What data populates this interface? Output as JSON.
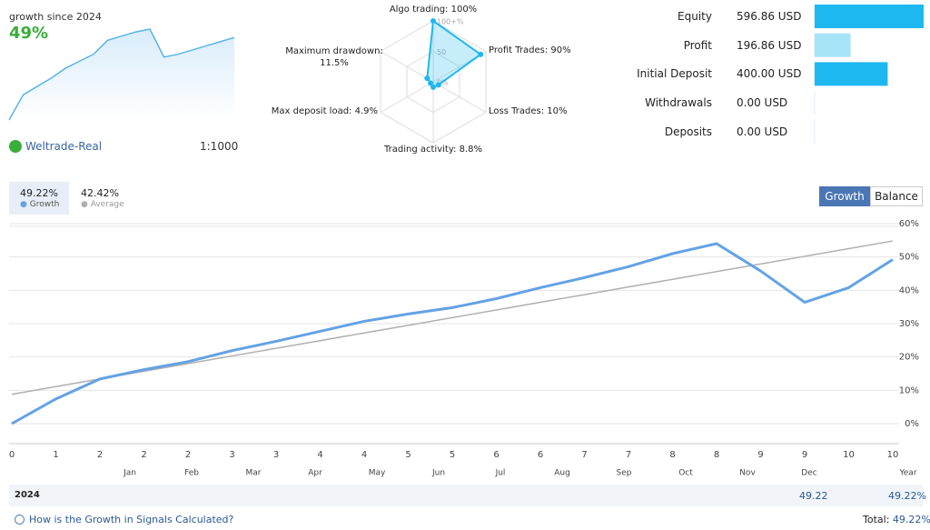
{
  "header": {
    "caption": "growth since 2024",
    "growth": "49%"
  },
  "account": {
    "name": "Weltrade-Real",
    "leverage": "1:1000"
  },
  "chart_data": [
    {
      "type": "sparkline",
      "color": "#5ab4e6",
      "values": [
        0,
        18,
        24,
        30,
        37,
        42,
        47,
        57,
        60,
        63,
        65,
        45,
        47,
        50,
        53,
        56,
        59
      ]
    },
    {
      "type": "radar",
      "color": "#1eb8f0",
      "axes": [
        {
          "label": "Algo trading: 100%",
          "value": 100
        },
        {
          "label": "Profit Trades: 90%",
          "value": 90
        },
        {
          "label": "Loss Trades: 10%",
          "value": 10
        },
        {
          "label": "Trading activity: 8.8%",
          "value": 8.8
        },
        {
          "label": "Max deposit load: 4.9%",
          "value": 4.9
        },
        {
          "label": "Maximum drawdown: 11.5%",
          "value": 11.5
        }
      ],
      "rlim": [
        0,
        100
      ],
      "rticks": [
        {
          "value": 0,
          "label": "0%"
        },
        50,
        {
          "value": 100,
          "label": "100+%"
        }
      ]
    },
    {
      "type": "hbar",
      "categories": [
        "Equity",
        "Profit",
        "Initial Deposit",
        "Withdrawals",
        "Deposits"
      ],
      "values": [
        596.86,
        196.86,
        400,
        0,
        0
      ],
      "value_labels": [
        "596.86 USD",
        "196.86 USD",
        "400.00 USD",
        "0.00 USD",
        "0.00 USD"
      ],
      "colors": [
        "#1eb8f0",
        "#a8e4f7",
        "#1eb8f0",
        "#1eb8f0",
        "#1eb8f0"
      ]
    },
    {
      "type": "line",
      "categories": [
        "0",
        "1",
        "2",
        "2",
        "2",
        "3",
        "3",
        "4",
        "4",
        "5",
        "5",
        "6",
        "6",
        "7",
        "7",
        "8",
        "8",
        "9",
        "9",
        "10",
        "10"
      ],
      "months": [
        "Jan",
        "Feb",
        "Mar",
        "Apr",
        "May",
        "Jun",
        "Jul",
        "Aug",
        "Sep",
        "Oct",
        "Nov",
        "Dec"
      ],
      "period_label": "Year",
      "series": [
        {
          "name": "Growth",
          "color": "#64a2e4",
          "total": "49.22%",
          "values": [
            0,
            7.4,
            13.4,
            16.2,
            18.6,
            21.9,
            24.7,
            27.7,
            30.7,
            32.9,
            34.8,
            37.5,
            40.8,
            43.8,
            47.1,
            51,
            54,
            45.8,
            36.4,
            40.8,
            49.22
          ]
        },
        {
          "name": "Average",
          "color": "#b0b0b0",
          "total": "42.42%",
          "values": [
            8.8,
            11.1,
            13.4,
            15.7,
            18,
            20.3,
            22.6,
            24.9,
            27.2,
            29.5,
            31.8,
            34.1,
            36.4,
            38.7,
            41,
            43.3,
            45.6,
            47.9,
            50.2,
            52.5,
            54.8
          ]
        }
      ],
      "ylim": [
        -6,
        60
      ],
      "yticks": [
        {
          "value": 0,
          "label": "0%"
        },
        {
          "value": 10,
          "label": "10%"
        },
        {
          "value": 20,
          "label": "20%"
        },
        {
          "value": 30,
          "label": "30%"
        },
        {
          "value": 40,
          "label": "40%"
        },
        {
          "value": 50,
          "label": "50%"
        },
        {
          "value": 60,
          "label": "60%"
        }
      ],
      "grid": true,
      "buttons": [
        "Growth",
        "Balance"
      ]
    }
  ],
  "table": {
    "year": "2024",
    "value": "49.22",
    "total": "49.22%"
  },
  "footer": {
    "link": "How is the Growth in Signals Calculated?",
    "total_label": "Total:",
    "total": "49.22%"
  }
}
